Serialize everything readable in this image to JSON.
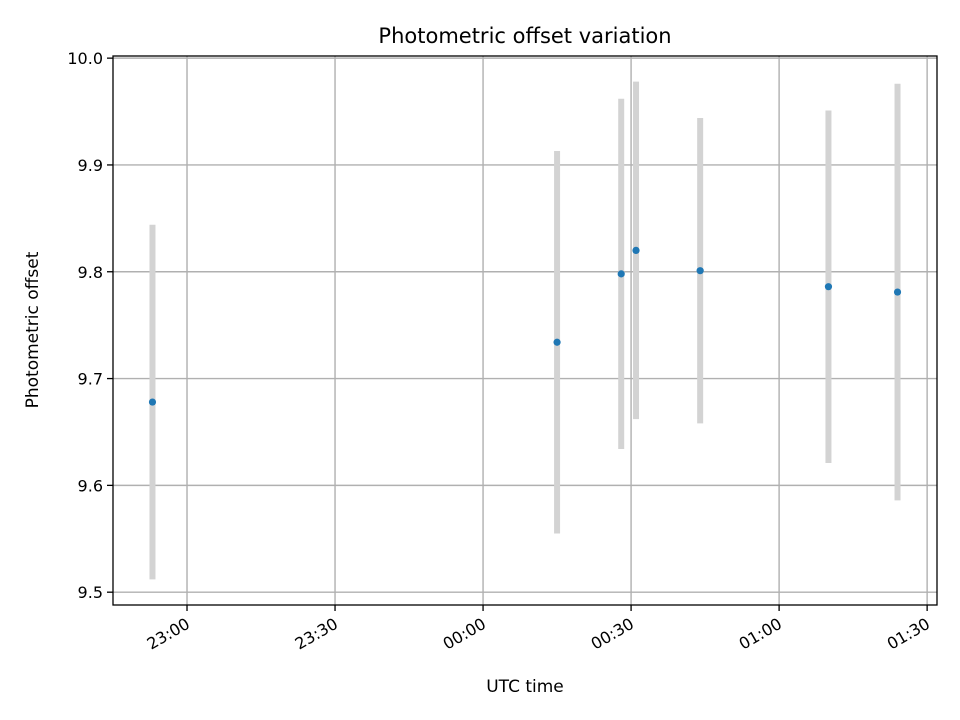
{
  "chart_data": {
    "type": "scatter",
    "title": "Photometric offset variation",
    "xlabel": "UTC time",
    "ylabel": "Photometric offset",
    "grid": true,
    "xlim": [
      "22:45",
      "01:32"
    ],
    "ylim": [
      9.488,
      10.002
    ],
    "x_ticks": [
      "23:00",
      "23:30",
      "00:00",
      "00:30",
      "01:00",
      "01:30"
    ],
    "y_ticks": [
      "9.5",
      "9.6",
      "9.7",
      "9.8",
      "9.9",
      "10.0"
    ],
    "series": [
      {
        "marker_color": "#1f77b4",
        "errorbar_color": "#d3d3d3",
        "x": [
          "22:53",
          "00:15",
          "00:28",
          "00:31",
          "00:44",
          "01:10",
          "01:24"
        ],
        "y": [
          9.678,
          9.734,
          9.798,
          9.82,
          9.801,
          9.786,
          9.781
        ],
        "yerr": [
          0.166,
          0.179,
          0.164,
          0.158,
          0.143,
          0.165,
          0.195
        ]
      }
    ]
  }
}
